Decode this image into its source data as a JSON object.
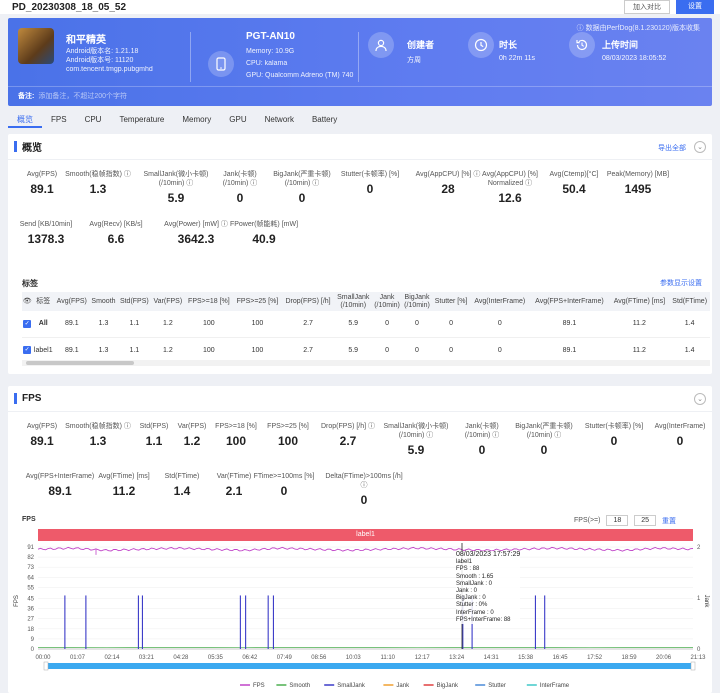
{
  "topbar": {
    "title": "PD_20230308_18_05_52",
    "compare": "加入对比",
    "settings": "设置"
  },
  "banner": {
    "version": "ⓘ 数据由PerfDog(8.1.230120)版本收集",
    "game": {
      "name": "和平精英",
      "android_label": "Android版本名: 1.21.18",
      "android_code": "Android版本号: 11120",
      "package": "com.tencent.tmgp.pubgmhd"
    },
    "device": {
      "name": "PGT-AN10",
      "memory": "Memory: 10.9G",
      "cpu": "CPU: kalama",
      "gpu": "GPU: Qualcomm Adreno (TM) 740"
    },
    "creator": {
      "label": "创建者",
      "value": "方周"
    },
    "duration": {
      "label": "时长",
      "value": "0h 22m 11s"
    },
    "upload": {
      "label": "上传时间",
      "value": "08/03/2023 18:05:52"
    },
    "remark": {
      "label": "备注:",
      "placeholder": "添加备注，不超过200个字符"
    }
  },
  "tabs": [
    "概览",
    "FPS",
    "CPU",
    "Temperature",
    "Memory",
    "GPU",
    "Network",
    "Battery"
  ],
  "overview": {
    "title": "概览",
    "export": "导出全部",
    "metrics_row1": [
      {
        "label": "Avg(FPS)",
        "value": "89.1"
      },
      {
        "label": "Smooth(稳帧指数) ⓘ",
        "value": "1.3"
      },
      {
        "label": "SmallJank(微小卡顿)\n(/10min) ⓘ",
        "value": "5.9"
      },
      {
        "label": "Jank(卡顿)\n(/10min) ⓘ",
        "value": "0"
      },
      {
        "label": "BigJank(严重卡顿)\n(/10min) ⓘ",
        "value": "0"
      },
      {
        "label": "Stutter(卡顿率) [%]",
        "value": "0"
      },
      {
        "label": "Avg(AppCPU) [%] ⓘ",
        "value": "28"
      },
      {
        "label": "Avg(AppCPU) [%]\nNormalized ⓘ",
        "value": "12.6"
      },
      {
        "label": "Avg(Ctemp)[°C]",
        "value": "50.4"
      },
      {
        "label": "Peak(Memory) [MB]",
        "value": "1495"
      }
    ],
    "metrics_row2": [
      {
        "label": "Send [KB/10min]",
        "value": "1378.3"
      },
      {
        "label": "Avg(Recv) [KB/s]",
        "value": "6.6"
      },
      {
        "label": "Avg(Power) [mW] ⓘ",
        "value": "3642.3"
      },
      {
        "label": "FPower(帧能耗) [mW]",
        "value": "40.9"
      }
    ],
    "tags_title": "标签",
    "tags_setting": "参数显示设置",
    "table": {
      "headers": [
        "",
        "标签",
        "Avg(FPS)",
        "Smooth",
        "Std(FPS)",
        "Var(FPS)",
        "FPS>=18 [%]",
        "FPS>=25 [%]",
        "Drop(FPS) [/h]",
        "SmallJank\n(/10min)",
        "Jank\n(/10min)",
        "BigJank\n(/10min)",
        "Stutter [%]",
        "Avg(InterFrame)",
        "Avg(FPS+InterFrame)",
        "Avg(FTime) [ms]",
        "Std(FTime)"
      ],
      "rows": [
        [
          "✓",
          "All",
          "89.1",
          "1.3",
          "1.1",
          "1.2",
          "100",
          "100",
          "2.7",
          "5.9",
          "0",
          "0",
          "0",
          "0",
          "89.1",
          "11.2",
          "1.4"
        ],
        [
          "✓",
          "label1",
          "89.1",
          "1.3",
          "1.1",
          "1.2",
          "100",
          "100",
          "2.7",
          "5.9",
          "0",
          "0",
          "0",
          "0",
          "89.1",
          "11.2",
          "1.4"
        ]
      ]
    }
  },
  "fps": {
    "title": "FPS",
    "metrics_row1": [
      {
        "label": "Avg(FPS)",
        "value": "89.1"
      },
      {
        "label": "Smooth(稳帧指数) ⓘ",
        "value": "1.3"
      },
      {
        "label": "Std(FPS)",
        "value": "1.1"
      },
      {
        "label": "Var(FPS)",
        "value": "1.2"
      },
      {
        "label": "FPS>=18 [%]",
        "value": "100"
      },
      {
        "label": "FPS>=25 [%]",
        "value": "100"
      },
      {
        "label": "Drop(FPS) [/h] ⓘ",
        "value": "2.7"
      },
      {
        "label": "SmallJank(微小卡顿)\n(/10min) ⓘ",
        "value": "5.9"
      },
      {
        "label": "Jank(卡顿)\n(/10min) ⓘ",
        "value": "0"
      },
      {
        "label": "BigJank(严重卡顿)\n(/10min) ⓘ",
        "value": "0"
      },
      {
        "label": "Stutter(卡顿率) [%]",
        "value": "0"
      },
      {
        "label": "Avg(InterFrame)",
        "value": "0"
      }
    ],
    "metrics_row2": [
      {
        "label": "Avg(FPS+InterFrame)",
        "value": "89.1"
      },
      {
        "label": "Avg(FTime) [ms]",
        "value": "11.2"
      },
      {
        "label": "Std(FTime)",
        "value": "1.4"
      },
      {
        "label": "Var(FTime)",
        "value": "2.1"
      },
      {
        "label": "FTime>=100ms [%]",
        "value": "0"
      },
      {
        "label": "Delta(FTime)>100ms [/h] ⓘ",
        "value": "0"
      }
    ],
    "chart_label": "FPS",
    "threshold_label": "FPS(>=)",
    "threshold_1": "18",
    "threshold_2": "25",
    "reset": "重置",
    "label_bar": "label1",
    "tooltip": {
      "time": "08/03/2023 17:57:29",
      "label": "label1",
      "lines": [
        "FPS : 88",
        "Smooth : 1.65",
        "SmallJank : 0",
        "Jank : 0",
        "BigJank : 0",
        "Stutter : 0%",
        "InterFrame : 0",
        "FPS+InterFrame: 88"
      ]
    }
  },
  "chart_data": {
    "type": "line",
    "title": "FPS",
    "ylabel": "FPS",
    "y2label": "Jank",
    "ylim": [
      0,
      91
    ],
    "y_ticks": [
      0,
      9,
      18,
      27,
      36,
      45,
      55,
      64,
      73,
      82,
      91
    ],
    "y2_ticks": [
      0,
      1,
      2
    ],
    "x_ticks": [
      "00:00",
      "01:07",
      "02:14",
      "03:21",
      "04:28",
      "05:35",
      "06:42",
      "07:49",
      "08:56",
      "10:03",
      "11:10",
      "12:17",
      "13:24",
      "14:31",
      "15:38",
      "16:45",
      "17:52",
      "18:59",
      "20:06",
      "21:13"
    ],
    "series": [
      {
        "name": "FPS",
        "color": "#c044c8",
        "values": [
          89,
          90,
          88,
          89,
          90,
          89,
          88,
          90,
          89,
          88,
          89,
          90,
          89,
          88,
          89,
          90,
          89,
          88,
          90,
          89
        ]
      },
      {
        "name": "Smooth",
        "color": "#4caf50",
        "values": [
          1.3,
          1.3,
          1.2,
          1.4,
          1.3,
          1.3,
          1.2,
          1.3,
          1.4,
          1.3,
          1.3,
          1.2,
          1.3,
          1.4,
          1.3,
          1.3,
          1.2,
          1.3,
          1.3,
          1.4
        ]
      },
      {
        "name": "SmallJank",
        "color": "#3a3ac8",
        "spikes": [
          0.87,
          1.55,
          3.25,
          3.38,
          6.55,
          6.72,
          7.45,
          7.62,
          13.75,
          14.05,
          16.1,
          16.4
        ]
      },
      {
        "name": "Jank",
        "color": "#f0a030"
      },
      {
        "name": "BigJank",
        "color": "#e04040"
      },
      {
        "name": "Stutter",
        "color": "#4a8ad8"
      },
      {
        "name": "InterFrame",
        "color": "#40c8c8"
      }
    ],
    "legend_position": "bottom"
  }
}
